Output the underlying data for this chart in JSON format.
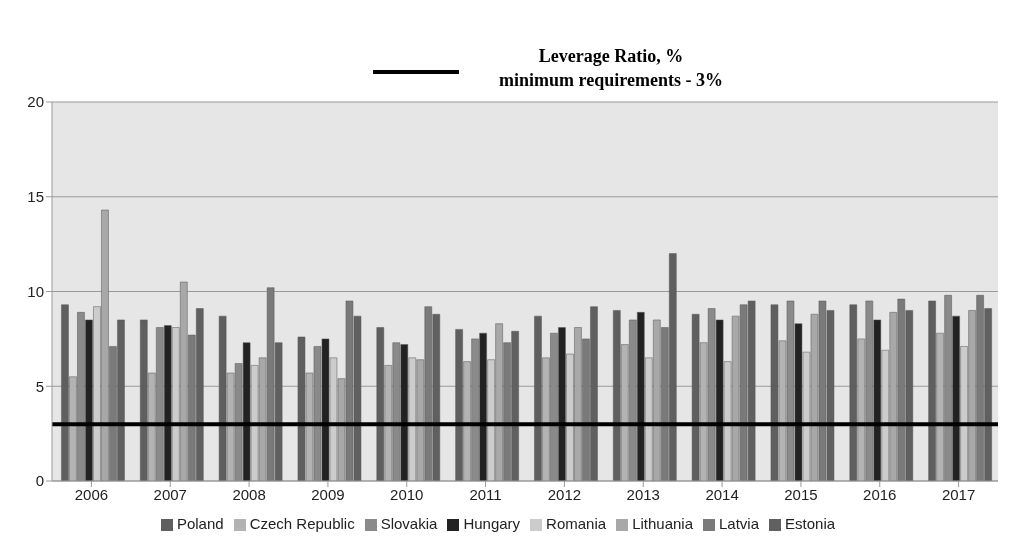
{
  "chart_data": {
    "type": "bar",
    "title": "Leverage Ratio, %",
    "categories": [
      "2006",
      "2007",
      "2008",
      "2009",
      "2010",
      "2011",
      "2012",
      "2013",
      "2014",
      "2015",
      "2016",
      "2017"
    ],
    "series": [
      {
        "name": "Poland",
        "color": "#5f5f5f",
        "values": [
          9.3,
          8.5,
          8.7,
          7.6,
          8.1,
          8.0,
          8.7,
          9.0,
          8.8,
          9.3,
          9.3,
          9.5
        ]
      },
      {
        "name": "Czech Republic",
        "color": "#b3b3b3",
        "values": [
          5.5,
          5.7,
          5.7,
          5.7,
          6.1,
          6.3,
          6.5,
          7.2,
          7.3,
          7.4,
          7.5,
          7.8
        ]
      },
      {
        "name": "Slovakia",
        "color": "#8a8a8a",
        "values": [
          8.9,
          8.1,
          6.2,
          7.1,
          7.3,
          7.5,
          7.8,
          8.5,
          9.1,
          9.5,
          9.5,
          9.8
        ]
      },
      {
        "name": "Hungary",
        "color": "#222222",
        "values": [
          8.5,
          8.2,
          7.3,
          7.5,
          7.2,
          7.8,
          8.1,
          8.9,
          8.5,
          8.3,
          8.5,
          8.7
        ]
      },
      {
        "name": "Romania",
        "color": "#cccccc",
        "values": [
          9.2,
          8.1,
          6.1,
          6.5,
          6.5,
          6.4,
          6.7,
          6.5,
          6.3,
          6.8,
          6.9,
          7.1
        ]
      },
      {
        "name": "Lithuania",
        "color": "#a8a8a8",
        "values": [
          14.3,
          10.5,
          6.5,
          5.4,
          6.4,
          8.3,
          8.1,
          8.5,
          8.7,
          8.8,
          8.9,
          9.0
        ]
      },
      {
        "name": "Latvia",
        "color": "#7a7a7a",
        "values": [
          7.1,
          7.7,
          10.2,
          9.5,
          9.2,
          7.3,
          7.5,
          8.1,
          9.3,
          9.5,
          9.6,
          9.8
        ]
      },
      {
        "name": "Estonia",
        "color": "#606060",
        "values": [
          8.5,
          9.1,
          7.3,
          8.7,
          8.8,
          7.9,
          9.2,
          12.0,
          9.5,
          9.0,
          9.0,
          9.1
        ]
      }
    ],
    "ylim": [
      0,
      20
    ],
    "yticks": [
      0,
      5,
      10,
      15,
      20
    ],
    "grid": "y",
    "legend": "bottom",
    "ref_lines": [
      {
        "axis": "y",
        "value": 3,
        "label": "minimum  requirements - 3%",
        "color": "#000000"
      }
    ]
  }
}
